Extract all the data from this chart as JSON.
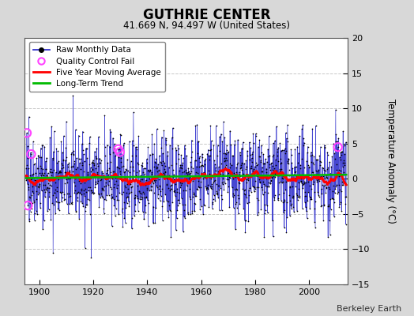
{
  "title": "GUTHRIE CENTER",
  "subtitle": "41.669 N, 94.497 W (United States)",
  "ylabel": "Temperature Anomaly (°C)",
  "attribution": "Berkeley Earth",
  "year_start": 1895,
  "year_end": 2013,
  "ylim": [
    -15,
    20
  ],
  "yticks": [
    -15,
    -10,
    -5,
    0,
    5,
    10,
    15,
    20
  ],
  "xticks": [
    1900,
    1920,
    1940,
    1960,
    1980,
    2000
  ],
  "fig_bg_color": "#d8d8d8",
  "plot_bg_color": "#ffffff",
  "grid_color": "#c8c8c8",
  "raw_line_color": "#3333cc",
  "raw_dot_color": "#000000",
  "moving_avg_color": "#ff0000",
  "trend_color": "#00bb00",
  "qc_fail_color": "#ff44ff",
  "seed": 42,
  "trend_slope": 0.004,
  "trend_intercept": 0.1
}
